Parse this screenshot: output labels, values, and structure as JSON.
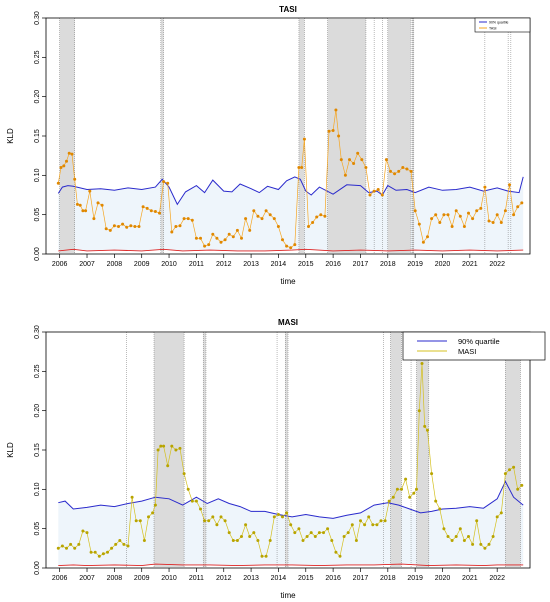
{
  "chart_data": [
    {
      "type": "line",
      "title": "TASI",
      "xlabel": "time",
      "ylabel": "KLD",
      "ylim": [
        0,
        0.3
      ],
      "xlim": [
        2005.5,
        2023.2
      ],
      "y_ticks": [
        "0.00",
        "0.05",
        "0.10",
        "0.15",
        "0.20",
        "0.25",
        "0.30"
      ],
      "x_ticks": [
        "2006",
        "2007",
        "2008",
        "2009",
        "2010",
        "2011",
        "2012",
        "2013",
        "2014",
        "2015",
        "2016",
        "2017",
        "2018",
        "2019",
        "2020",
        "2021",
        "2022"
      ],
      "legend": {
        "position": "top-right",
        "entries": [
          "90% quartile",
          "TASI"
        ]
      },
      "colors": {
        "quantile": "#2a2acc",
        "series": "#f5a623",
        "series_marker": "#e08800",
        "lower": "#dd2222",
        "band_fill": "#eef5fb",
        "shade": "#d9d9d9"
      },
      "shaded_regions": [
        [
          2006.0,
          2006.55
        ],
        [
          2009.7,
          2009.8
        ],
        [
          2014.75,
          2014.95
        ],
        [
          2015.8,
          2017.2
        ],
        [
          2018.0,
          2018.85
        ],
        [
          2018.9,
          2018.95
        ]
      ],
      "vlines": [
        2006.0,
        2006.55,
        2009.7,
        2009.8,
        2014.75,
        2014.95,
        2015.8,
        2017.2,
        2017.5,
        2017.8,
        2018.0,
        2018.85,
        2018.9,
        2018.95,
        2021.55,
        2022.4,
        2022.5
      ],
      "series": [
        {
          "name": "90% quartile",
          "x": [
            2005.95,
            2006.1,
            2006.3,
            2006.5,
            2007.0,
            2007.5,
            2008.0,
            2008.5,
            2009.0,
            2009.5,
            2009.75,
            2010.0,
            2010.3,
            2010.6,
            2011.0,
            2011.3,
            2011.6,
            2012.0,
            2012.3,
            2012.6,
            2013.0,
            2013.3,
            2013.6,
            2014.0,
            2014.3,
            2014.6,
            2014.8,
            2015.0,
            2015.2,
            2015.5,
            2016.0,
            2016.5,
            2017.0,
            2017.3,
            2017.6,
            2017.8,
            2018.0,
            2018.3,
            2018.7,
            2019.0,
            2019.5,
            2020.0,
            2020.5,
            2021.0,
            2021.5,
            2022.0,
            2022.4,
            2022.8,
            2022.95
          ],
          "values": [
            0.077,
            0.085,
            0.087,
            0.086,
            0.082,
            0.083,
            0.081,
            0.084,
            0.082,
            0.085,
            0.095,
            0.085,
            0.063,
            0.079,
            0.087,
            0.078,
            0.094,
            0.08,
            0.079,
            0.089,
            0.083,
            0.078,
            0.086,
            0.082,
            0.093,
            0.098,
            0.095,
            0.08,
            0.075,
            0.085,
            0.076,
            0.088,
            0.087,
            0.078,
            0.08,
            0.075,
            0.087,
            0.081,
            0.082,
            0.078,
            0.085,
            0.081,
            0.082,
            0.085,
            0.08,
            0.084,
            0.08,
            0.078,
            0.098
          ]
        },
        {
          "name": "TASI",
          "x": [
            2005.95,
            2006.05,
            2006.15,
            2006.25,
            2006.35,
            2006.45,
            2006.55,
            2006.65,
            2006.75,
            2006.85,
            2006.95,
            2007.1,
            2007.25,
            2007.4,
            2007.55,
            2007.7,
            2007.85,
            2008.0,
            2008.15,
            2008.3,
            2008.45,
            2008.6,
            2008.75,
            2008.9,
            2009.05,
            2009.2,
            2009.35,
            2009.5,
            2009.65,
            2009.8,
            2009.95,
            2010.1,
            2010.25,
            2010.4,
            2010.55,
            2010.7,
            2010.85,
            2011.0,
            2011.15,
            2011.3,
            2011.45,
            2011.6,
            2011.75,
            2011.9,
            2012.05,
            2012.2,
            2012.35,
            2012.5,
            2012.65,
            2012.8,
            2012.95,
            2013.1,
            2013.25,
            2013.4,
            2013.55,
            2013.7,
            2013.85,
            2014.0,
            2014.15,
            2014.3,
            2014.45,
            2014.6,
            2014.75,
            2014.85,
            2014.95,
            2015.1,
            2015.25,
            2015.4,
            2015.55,
            2015.7,
            2015.85,
            2016.0,
            2016.1,
            2016.2,
            2016.3,
            2016.45,
            2016.6,
            2016.75,
            2016.9,
            2017.05,
            2017.2,
            2017.35,
            2017.5,
            2017.65,
            2017.8,
            2017.95,
            2018.1,
            2018.25,
            2018.4,
            2018.55,
            2018.7,
            2018.85,
            2019.0,
            2019.15,
            2019.3,
            2019.45,
            2019.6,
            2019.75,
            2019.9,
            2020.05,
            2020.2,
            2020.35,
            2020.5,
            2020.65,
            2020.8,
            2020.95,
            2021.1,
            2021.25,
            2021.4,
            2021.55,
            2021.7,
            2021.85,
            2022.0,
            2022.15,
            2022.3,
            2022.45,
            2022.6,
            2022.75,
            2022.9
          ],
          "values": [
            0.09,
            0.11,
            0.112,
            0.118,
            0.128,
            0.127,
            0.095,
            0.063,
            0.062,
            0.055,
            0.055,
            0.08,
            0.045,
            0.065,
            0.062,
            0.032,
            0.03,
            0.036,
            0.035,
            0.038,
            0.034,
            0.036,
            0.035,
            0.035,
            0.06,
            0.058,
            0.055,
            0.054,
            0.052,
            0.092,
            0.09,
            0.028,
            0.035,
            0.036,
            0.045,
            0.045,
            0.043,
            0.02,
            0.02,
            0.01,
            0.012,
            0.025,
            0.02,
            0.015,
            0.018,
            0.025,
            0.022,
            0.03,
            0.02,
            0.045,
            0.03,
            0.055,
            0.048,
            0.045,
            0.055,
            0.05,
            0.045,
            0.035,
            0.018,
            0.01,
            0.008,
            0.012,
            0.11,
            0.11,
            0.146,
            0.035,
            0.04,
            0.047,
            0.05,
            0.048,
            0.156,
            0.157,
            0.183,
            0.15,
            0.12,
            0.1,
            0.12,
            0.115,
            0.128,
            0.12,
            0.11,
            0.075,
            0.08,
            0.082,
            0.075,
            0.12,
            0.105,
            0.102,
            0.105,
            0.11,
            0.108,
            0.105,
            0.055,
            0.038,
            0.015,
            0.022,
            0.045,
            0.05,
            0.04,
            0.05,
            0.05,
            0.035,
            0.055,
            0.048,
            0.035,
            0.052,
            0.045,
            0.055,
            0.058,
            0.085,
            0.042,
            0.04,
            0.05,
            0.04,
            0.055,
            0.088,
            0.05,
            0.06,
            0.065
          ]
        },
        {
          "name": "",
          "x": [
            2005.95,
            2006.5,
            2007.0,
            2008.0,
            2009.0,
            2009.8,
            2010.5,
            2011.5,
            2012.5,
            2013.5,
            2014.5,
            2015.0,
            2016.0,
            2017.0,
            2018.0,
            2019.0,
            2020.0,
            2021.0,
            2022.0,
            2022.95
          ],
          "values": [
            0.004,
            0.006,
            0.004,
            0.005,
            0.004,
            0.006,
            0.004,
            0.005,
            0.004,
            0.004,
            0.005,
            0.006,
            0.004,
            0.005,
            0.004,
            0.005,
            0.004,
            0.005,
            0.004,
            0.005
          ]
        }
      ]
    },
    {
      "type": "line",
      "title": "MASI",
      "xlabel": "time",
      "ylabel": "KLD",
      "ylim": [
        0,
        0.3
      ],
      "xlim": [
        2005.5,
        2023.2
      ],
      "y_ticks": [
        "0.00",
        "0.05",
        "0.10",
        "0.15",
        "0.20",
        "0.25",
        "0.30"
      ],
      "x_ticks": [
        "2006",
        "2007",
        "2008",
        "2009",
        "2010",
        "2011",
        "2012",
        "2013",
        "2014",
        "2015",
        "2016",
        "2017",
        "2018",
        "2019",
        "2020",
        "2021",
        "2022"
      ],
      "legend": {
        "position": "top-right",
        "entries": [
          "90% quartile",
          "MASI"
        ]
      },
      "colors": {
        "quantile": "#2a2acc",
        "series": "#d4c020",
        "series_marker": "#b8a400",
        "lower": "#dd2222",
        "band_fill": "#eef5fb",
        "shade": "#d9d9d9"
      },
      "shaded_regions": [
        [
          2009.45,
          2010.55
        ],
        [
          2011.25,
          2011.35
        ],
        [
          2014.25,
          2014.35
        ],
        [
          2018.1,
          2018.5
        ],
        [
          2019.05,
          2019.5
        ],
        [
          2022.3,
          2022.85
        ]
      ],
      "vlines": [
        2008.45,
        2009.45,
        2010.55,
        2011.25,
        2011.35,
        2013.95,
        2014.25,
        2014.35,
        2017.85,
        2018.1,
        2018.5,
        2018.85,
        2019.05,
        2019.5,
        2022.3,
        2022.85
      ],
      "series": [
        {
          "name": "90% quartile",
          "x": [
            2005.95,
            2006.2,
            2006.5,
            2007.0,
            2007.5,
            2008.0,
            2008.5,
            2009.0,
            2009.5,
            2010.0,
            2010.5,
            2011.0,
            2011.4,
            2011.8,
            2012.2,
            2012.6,
            2013.0,
            2013.5,
            2014.0,
            2014.5,
            2015.0,
            2015.5,
            2016.0,
            2016.5,
            2017.0,
            2017.5,
            2018.0,
            2018.4,
            2018.8,
            2019.2,
            2019.6,
            2020.0,
            2020.5,
            2021.0,
            2021.5,
            2022.0,
            2022.3,
            2022.6,
            2022.95
          ],
          "values": [
            0.083,
            0.085,
            0.075,
            0.077,
            0.08,
            0.078,
            0.082,
            0.085,
            0.09,
            0.088,
            0.08,
            0.09,
            0.082,
            0.088,
            0.082,
            0.078,
            0.072,
            0.072,
            0.068,
            0.065,
            0.068,
            0.065,
            0.063,
            0.067,
            0.07,
            0.08,
            0.083,
            0.08,
            0.075,
            0.07,
            0.072,
            0.075,
            0.076,
            0.078,
            0.076,
            0.088,
            0.11,
            0.09,
            0.08
          ]
        },
        {
          "name": "MASI",
          "x": [
            2005.95,
            2006.1,
            2006.25,
            2006.4,
            2006.55,
            2006.7,
            2006.85,
            2007.0,
            2007.15,
            2007.3,
            2007.45,
            2007.6,
            2007.75,
            2007.9,
            2008.05,
            2008.2,
            2008.35,
            2008.5,
            2008.65,
            2008.8,
            2008.95,
            2009.1,
            2009.25,
            2009.4,
            2009.5,
            2009.6,
            2009.7,
            2009.8,
            2009.95,
            2010.1,
            2010.25,
            2010.4,
            2010.55,
            2010.7,
            2010.85,
            2011.0,
            2011.15,
            2011.3,
            2011.45,
            2011.6,
            2011.75,
            2011.9,
            2012.05,
            2012.2,
            2012.35,
            2012.5,
            2012.65,
            2012.8,
            2012.95,
            2013.1,
            2013.25,
            2013.4,
            2013.55,
            2013.7,
            2013.85,
            2014.0,
            2014.15,
            2014.3,
            2014.45,
            2014.6,
            2014.75,
            2014.9,
            2015.05,
            2015.2,
            2015.35,
            2015.5,
            2015.65,
            2015.8,
            2015.95,
            2016.1,
            2016.25,
            2016.4,
            2016.55,
            2016.7,
            2016.85,
            2017.0,
            2017.15,
            2017.3,
            2017.45,
            2017.6,
            2017.75,
            2017.9,
            2018.05,
            2018.2,
            2018.35,
            2018.5,
            2018.65,
            2018.8,
            2018.95,
            2019.05,
            2019.15,
            2019.25,
            2019.35,
            2019.45,
            2019.6,
            2019.75,
            2019.9,
            2020.05,
            2020.2,
            2020.35,
            2020.5,
            2020.65,
            2020.8,
            2020.95,
            2021.1,
            2021.25,
            2021.4,
            2021.55,
            2021.7,
            2021.85,
            2022.0,
            2022.15,
            2022.3,
            2022.45,
            2022.6,
            2022.75,
            2022.9
          ],
          "values": [
            0.025,
            0.028,
            0.025,
            0.03,
            0.025,
            0.03,
            0.047,
            0.045,
            0.02,
            0.02,
            0.015,
            0.018,
            0.02,
            0.025,
            0.03,
            0.035,
            0.03,
            0.028,
            0.09,
            0.06,
            0.06,
            0.035,
            0.065,
            0.07,
            0.08,
            0.15,
            0.155,
            0.155,
            0.13,
            0.155,
            0.15,
            0.152,
            0.12,
            0.1,
            0.085,
            0.085,
            0.075,
            0.06,
            0.06,
            0.065,
            0.055,
            0.065,
            0.06,
            0.045,
            0.035,
            0.035,
            0.04,
            0.055,
            0.04,
            0.045,
            0.035,
            0.015,
            0.015,
            0.035,
            0.065,
            0.068,
            0.065,
            0.07,
            0.055,
            0.045,
            0.05,
            0.035,
            0.04,
            0.045,
            0.04,
            0.045,
            0.045,
            0.05,
            0.035,
            0.02,
            0.015,
            0.04,
            0.045,
            0.055,
            0.035,
            0.06,
            0.055,
            0.065,
            0.055,
            0.055,
            0.06,
            0.06,
            0.085,
            0.09,
            0.1,
            0.1,
            0.113,
            0.09,
            0.095,
            0.1,
            0.2,
            0.26,
            0.18,
            0.175,
            0.12,
            0.085,
            0.075,
            0.05,
            0.04,
            0.035,
            0.04,
            0.05,
            0.035,
            0.04,
            0.03,
            0.06,
            0.03,
            0.025,
            0.03,
            0.04,
            0.065,
            0.07,
            0.12,
            0.125,
            0.128,
            0.1,
            0.105
          ]
        },
        {
          "name": "",
          "x": [
            2005.95,
            2006.5,
            2007.0,
            2008.0,
            2009.0,
            2009.5,
            2010.5,
            2011.5,
            2012.5,
            2013.5,
            2014.5,
            2015.5,
            2016.5,
            2017.5,
            2018.5,
            2019.5,
            2020.5,
            2021.5,
            2022.0,
            2022.95
          ],
          "values": [
            0.003,
            0.004,
            0.003,
            0.004,
            0.003,
            0.005,
            0.004,
            0.004,
            0.003,
            0.004,
            0.004,
            0.003,
            0.004,
            0.004,
            0.005,
            0.003,
            0.004,
            0.003,
            0.004,
            0.004
          ]
        }
      ]
    }
  ]
}
